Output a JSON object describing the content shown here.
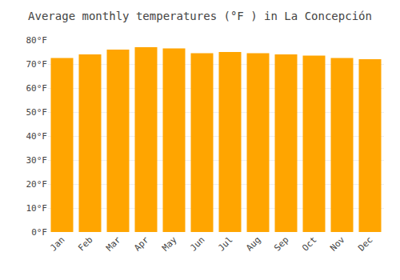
{
  "chart_data": {
    "type": "bar",
    "title": "Average monthly temperatures (°F ) in La Concepción",
    "categories": [
      "Jan",
      "Feb",
      "Mar",
      "Apr",
      "May",
      "Jun",
      "Jul",
      "Aug",
      "Sep",
      "Oct",
      "Nov",
      "Dec"
    ],
    "values": [
      72.5,
      74.0,
      76.0,
      77.0,
      76.5,
      74.5,
      75.0,
      74.5,
      74.0,
      73.5,
      72.5,
      72.0
    ],
    "color": "#FFA500",
    "ylim": [
      0,
      80
    ],
    "yticks": [
      {
        "value": 0,
        "label": "0°F"
      },
      {
        "value": 10,
        "label": "10°F"
      },
      {
        "value": 20,
        "label": "20°F"
      },
      {
        "value": 30,
        "label": "30°F"
      },
      {
        "value": 40,
        "label": "40°F"
      },
      {
        "value": 50,
        "label": "50°F"
      },
      {
        "value": 60,
        "label": "60°F"
      },
      {
        "value": 70,
        "label": "70°F"
      },
      {
        "value": 80,
        "label": "80°F"
      }
    ],
    "grid": true
  }
}
